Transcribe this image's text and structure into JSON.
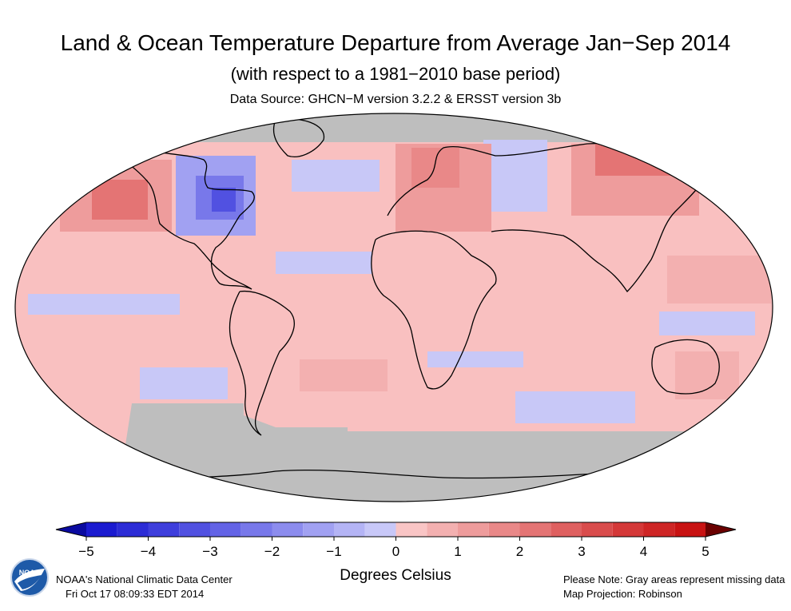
{
  "header": {
    "title": "Land & Ocean Temperature Departure from Average Jan−Sep 2014",
    "subtitle": "(with respect to a 1981−2010 base period)",
    "source": "Data Source: GHCN−M version 3.2.2 & ERSST version 3b"
  },
  "map": {
    "projection_note": "Map Projection: Robinson",
    "missing_note": "Please Note: Gray areas represent missing data",
    "colors": {
      "missing": "#bebebe",
      "near_zero_cool": "#c8c8f7",
      "near_zero_warm": "#f9c0c0"
    }
  },
  "legend": {
    "title": "Degrees Celsius",
    "ticks": [
      "−5",
      "−4",
      "−3",
      "−2",
      "−1",
      "0",
      "1",
      "2",
      "3",
      "4",
      "5"
    ],
    "min": -5,
    "max": 5,
    "step": 0.5,
    "colors": [
      "#1b1bd0",
      "#2c2cd6",
      "#3e3edc",
      "#5151e1",
      "#6363e6",
      "#7878ea",
      "#8c8cee",
      "#a1a1f2",
      "#b4b4f5",
      "#c8c8f8",
      "#f9c5c5",
      "#f3b0b0",
      "#ee9c9c",
      "#e98888",
      "#e47474",
      "#df6060",
      "#d94c4c",
      "#d43838",
      "#ce2525",
      "#c81212"
    ],
    "low_arrow_color": "#0a0aa0",
    "high_arrow_color": "#6a0000"
  },
  "footer": {
    "org": "NOAA's National Climatic Data Center",
    "timestamp": "Fri Oct 17 08:09:33 EDT 2014",
    "logo_text": "NOAA"
  }
}
